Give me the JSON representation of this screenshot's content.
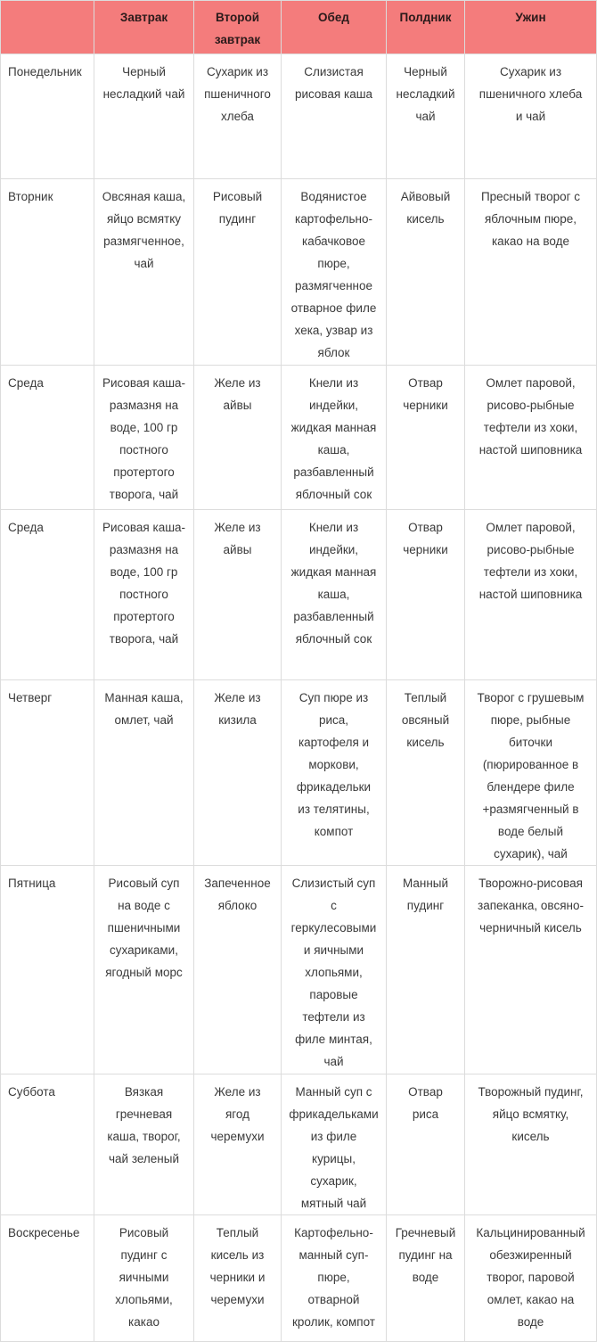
{
  "colors": {
    "header_bg": "#f47c7c",
    "border": "#dcdcdc",
    "text": "#3a3a3a"
  },
  "header": [
    "",
    "Завтрак",
    "Второй\nзавтрак",
    "Обед",
    "Полдник",
    "Ужин"
  ],
  "rows": [
    {
      "day": "Понедельник",
      "cells": [
        "Черный\nнесладкий чай",
        "Сухарик из\nпшеничного\nхлеба",
        "Слизистая\nрисовая каша",
        "Черный\nнесладкий\nчай",
        "Сухарик из\nпшеничного хлеба\nи чай"
      ]
    },
    {
      "day": "Вторник",
      "cells": [
        "Овсяная каша,\nяйцо всмятку\nразмягченное,\nчай",
        "Рисовый\nпудинг",
        "Водянистое\nкартофельно-\nкабачковое\nпюре,\nразмягченное\nотварное филе\nхека, узвар из\nяблок",
        "Айвовый\nкисель",
        "Пресный творог с\nяблочным пюре,\nкакао на воде"
      ]
    },
    {
      "day": "Среда",
      "cells": [
        "Рисовая каша-\nразмазня на\nводе, 100 гр\nпостного\nпротертого\nтворога, чай",
        "Желе из\nайвы",
        "Кнели из\nиндейки,\nжидкая манная\nкаша,\nразбавленный\nяблочный сок",
        "Отвар\nчерники",
        "Омлет паровой,\nрисово-рыбные\nтефтели из хоки,\nнастой шиповника"
      ]
    },
    {
      "day": "Среда",
      "cells": [
        "Рисовая каша-\nразмазня на\nводе, 100 гр\nпостного\nпротертого\nтворога, чай",
        "Желе из\nайвы",
        "Кнели из\nиндейки,\nжидкая манная\nкаша,\nразбавленный\nяблочный сок",
        "Отвар\nчерники",
        "Омлет паровой,\nрисово-рыбные\nтефтели из хоки,\nнастой шиповника"
      ]
    },
    {
      "day": "Четверг",
      "cells": [
        "Манная каша,\nомлет, чай",
        "Желе из\nкизила",
        "Суп пюре из\nриса,\nкартофеля и\nморкови,\nфрикадельки\nиз телятины,\nкомпот",
        "Теплый\nовсяный\nкисель",
        "Творог с грушевым\nпюре, рыбные\nбиточки\n(пюрированное в\nблендере филе\n+размягченный в\nводе белый\nсухарик), чай"
      ]
    },
    {
      "day": "Пятница",
      "cells": [
        "Рисовый суп\nна воде с\nпшеничными\nсухариками,\nягодный морс",
        "Запеченное\nяблоко",
        "Слизистый суп\nс\nгеркулесовыми\nи яичными\nхлопьями,\nпаровые\nтефтели из\nфиле минтая,\nчай",
        "Манный\nпудинг",
        "Творожно-рисовая\nзапеканка, овсяно-\nчерничный кисель"
      ]
    },
    {
      "day": "Суббота",
      "cells": [
        "Вязкая\nгречневая\nкаша, творог,\nчай зеленый",
        "Желе из\nягод\nчеремухи",
        "Манный суп с\nфрикадельками\nиз филе\nкурицы,\nсухарик,\nмятный чай",
        "Отвар\nриса",
        "Творожный пудинг,\nяйцо всмятку,\nкисель"
      ]
    },
    {
      "day": "Воскресенье",
      "cells": [
        "Рисовый\nпудинг с\nяичными\nхлопьями,\nкакао",
        "Теплый\nкисель из\nчерники и\nчеремухи",
        "Картофельно-\nманный суп-\nпюре,\nотварной\nкролик, компот",
        "Гречневый\nпудинг на\nводе",
        "Кальцинированный\nобезжиренный\nтворог, паровой\nомлет, какао на\nводе"
      ]
    }
  ]
}
